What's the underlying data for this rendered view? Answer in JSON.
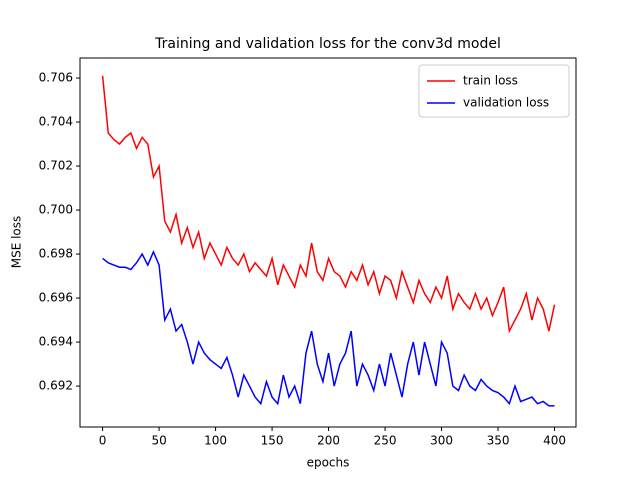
{
  "chart_data": {
    "type": "line",
    "title": "Training and validation loss for the conv3d model",
    "xlabel": "epochs",
    "ylabel": "MSE loss",
    "x": [
      0,
      5,
      10,
      15,
      20,
      25,
      30,
      35,
      40,
      45,
      50,
      55,
      60,
      65,
      70,
      75,
      80,
      85,
      90,
      95,
      100,
      105,
      110,
      115,
      120,
      125,
      130,
      135,
      140,
      145,
      150,
      155,
      160,
      165,
      170,
      175,
      180,
      185,
      190,
      195,
      200,
      205,
      210,
      215,
      220,
      225,
      230,
      235,
      240,
      245,
      250,
      255,
      260,
      265,
      270,
      275,
      280,
      285,
      290,
      295,
      300,
      305,
      310,
      315,
      320,
      325,
      330,
      335,
      340,
      345,
      350,
      355,
      360,
      365,
      370,
      375,
      380,
      385,
      390,
      395,
      400
    ],
    "series": [
      {
        "name": "train loss",
        "color": "#ff0000",
        "values": [
          0.7061,
          0.7035,
          0.7032,
          0.703,
          0.7033,
          0.7035,
          0.7028,
          0.7033,
          0.703,
          0.7015,
          0.702,
          0.6995,
          0.699,
          0.6998,
          0.6985,
          0.6992,
          0.6983,
          0.699,
          0.6978,
          0.6985,
          0.698,
          0.6975,
          0.6983,
          0.6978,
          0.6975,
          0.698,
          0.6972,
          0.6976,
          0.6973,
          0.697,
          0.6978,
          0.6966,
          0.6975,
          0.697,
          0.6965,
          0.6975,
          0.697,
          0.6985,
          0.6972,
          0.6968,
          0.6978,
          0.6972,
          0.697,
          0.6965,
          0.6972,
          0.6968,
          0.6975,
          0.6966,
          0.6972,
          0.6962,
          0.697,
          0.6968,
          0.696,
          0.6972,
          0.6965,
          0.6958,
          0.6968,
          0.6962,
          0.6958,
          0.6965,
          0.696,
          0.697,
          0.6955,
          0.6962,
          0.6958,
          0.6955,
          0.6962,
          0.6955,
          0.696,
          0.6952,
          0.6958,
          0.6965,
          0.6945,
          0.695,
          0.6955,
          0.6962,
          0.695,
          0.696,
          0.6955,
          0.6945,
          0.6957
        ]
      },
      {
        "name": "validation loss",
        "color": "#0000ff",
        "values": [
          0.6978,
          0.6976,
          0.6975,
          0.6974,
          0.6974,
          0.6973,
          0.6976,
          0.698,
          0.6975,
          0.6981,
          0.6975,
          0.695,
          0.6955,
          0.6945,
          0.6948,
          0.694,
          0.693,
          0.694,
          0.6935,
          0.6932,
          0.693,
          0.6928,
          0.6933,
          0.6925,
          0.6915,
          0.6925,
          0.692,
          0.6915,
          0.6912,
          0.6922,
          0.6915,
          0.6912,
          0.6925,
          0.6915,
          0.692,
          0.6912,
          0.6935,
          0.6945,
          0.693,
          0.6922,
          0.6935,
          0.692,
          0.693,
          0.6935,
          0.6945,
          0.692,
          0.693,
          0.6925,
          0.6918,
          0.693,
          0.692,
          0.6935,
          0.6925,
          0.6915,
          0.693,
          0.694,
          0.6925,
          0.694,
          0.693,
          0.692,
          0.694,
          0.6935,
          0.692,
          0.6918,
          0.6925,
          0.692,
          0.6918,
          0.6923,
          0.692,
          0.6918,
          0.6917,
          0.6915,
          0.6912,
          0.692,
          0.6913,
          0.6914,
          0.6915,
          0.6912,
          0.6913,
          0.6911,
          0.6911
        ]
      }
    ],
    "xlim": [
      -20,
      419
    ],
    "ylim": [
      0.69014,
      0.70691
    ],
    "xticks": [
      0,
      50,
      100,
      150,
      200,
      250,
      300,
      350,
      400
    ],
    "yticks": [
      0.692,
      0.694,
      0.696,
      0.698,
      {
        "value": 0.7,
        "label": "0.700"
      },
      0.702,
      0.704,
      0.706
    ],
    "legend": "upper right"
  }
}
